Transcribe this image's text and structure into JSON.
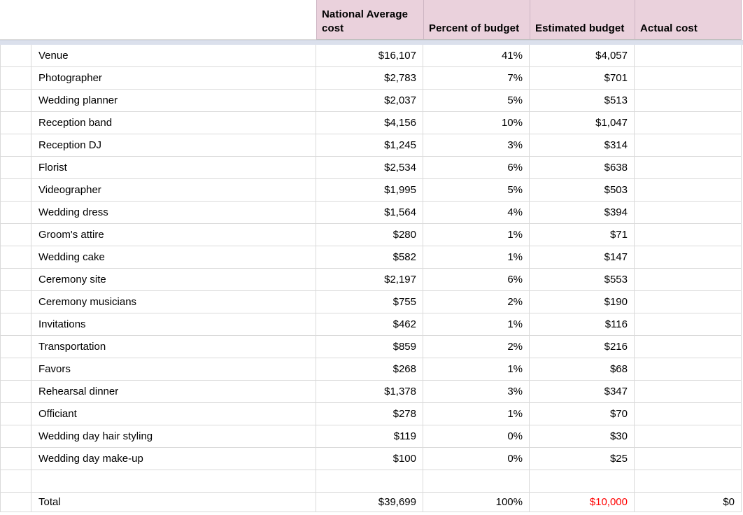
{
  "colors": {
    "header_fill": "#ead1dc",
    "grid_line": "#dadada",
    "freeze_band": "#dbe0ec",
    "negative_red": "#ff0000"
  },
  "table": {
    "headers": {
      "gutter": "",
      "item": "",
      "national_average": "National Average cost",
      "percent_budget": "Percent of budget",
      "estimated_budget": "Estimated budget",
      "actual_cost": "Actual cost"
    },
    "rows": [
      {
        "name": "Venue",
        "avg": "$16,107",
        "pct": "41%",
        "est": "$4,057",
        "act": ""
      },
      {
        "name": "Photographer",
        "avg": "$2,783",
        "pct": "7%",
        "est": "$701",
        "act": ""
      },
      {
        "name": "Wedding planner",
        "avg": "$2,037",
        "pct": "5%",
        "est": "$513",
        "act": ""
      },
      {
        "name": "Reception band",
        "avg": "$4,156",
        "pct": "10%",
        "est": "$1,047",
        "act": ""
      },
      {
        "name": "Reception DJ",
        "avg": "$1,245",
        "pct": "3%",
        "est": "$314",
        "act": ""
      },
      {
        "name": "Florist",
        "avg": "$2,534",
        "pct": "6%",
        "est": "$638",
        "act": ""
      },
      {
        "name": "Videographer",
        "avg": "$1,995",
        "pct": "5%",
        "est": "$503",
        "act": ""
      },
      {
        "name": "Wedding dress",
        "avg": "$1,564",
        "pct": "4%",
        "est": "$394",
        "act": ""
      },
      {
        "name": "Groom's attire",
        "avg": "$280",
        "pct": "1%",
        "est": "$71",
        "act": ""
      },
      {
        "name": "Wedding cake",
        "avg": "$582",
        "pct": "1%",
        "est": "$147",
        "act": ""
      },
      {
        "name": "Ceremony site",
        "avg": "$2,197",
        "pct": "6%",
        "est": "$553",
        "act": ""
      },
      {
        "name": "Ceremony musicians",
        "avg": "$755",
        "pct": "2%",
        "est": "$190",
        "act": ""
      },
      {
        "name": "Invitations",
        "avg": "$462",
        "pct": "1%",
        "est": "$116",
        "act": ""
      },
      {
        "name": "Transportation",
        "avg": "$859",
        "pct": "2%",
        "est": "$216",
        "act": ""
      },
      {
        "name": "Favors",
        "avg": "$268",
        "pct": "1%",
        "est": "$68",
        "act": ""
      },
      {
        "name": "Rehearsal dinner",
        "avg": "$1,378",
        "pct": "3%",
        "est": "$347",
        "act": ""
      },
      {
        "name": "Officiant",
        "avg": "$278",
        "pct": "1%",
        "est": "$70",
        "act": ""
      },
      {
        "name": "Wedding day hair styling",
        "avg": "$119",
        "pct": "0%",
        "est": "$30",
        "act": ""
      },
      {
        "name": "Wedding day make-up",
        "avg": "$100",
        "pct": "0%",
        "est": "$25",
        "act": ""
      },
      {
        "name": "",
        "avg": "",
        "pct": "",
        "est": "",
        "act": ""
      },
      {
        "name": "Total",
        "avg": "$39,699",
        "pct": "100%",
        "est": "$10,000",
        "act": "$0",
        "is_total": true,
        "est_red": true
      }
    ]
  }
}
